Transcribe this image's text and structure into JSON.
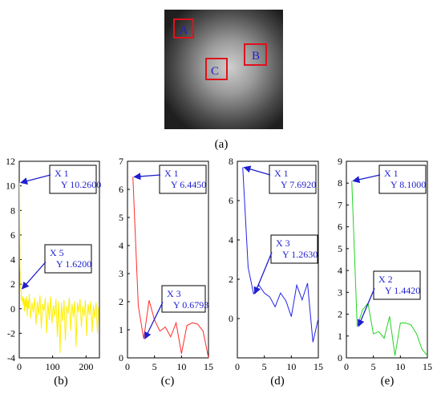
{
  "image_panel": {
    "label": "(a)",
    "regions": [
      {
        "label": "A",
        "color": "#e0121b",
        "text_color": "#1f1fd0"
      },
      {
        "label": "B",
        "color": "#e0121b",
        "text_color": "#1f1fd0"
      },
      {
        "label": "C",
        "color": "#e0121b",
        "text_color": "#1f1fd0"
      }
    ]
  },
  "chart_data": [
    {
      "type": "line",
      "label": "(b)",
      "color": "#ffee00",
      "xlim": [
        0,
        240
      ],
      "ylim": [
        -4,
        12
      ],
      "xticks": [
        0,
        100,
        200
      ],
      "yticks": [
        -4,
        -2,
        0,
        2,
        4,
        6,
        8,
        10,
        12
      ],
      "x": [
        1,
        2,
        3,
        4,
        5,
        6,
        8,
        10,
        12,
        14,
        16,
        18,
        20,
        22,
        24,
        26,
        28,
        30,
        34,
        38,
        42,
        46,
        50,
        54,
        58,
        62,
        66,
        70,
        74,
        78,
        82,
        86,
        90,
        94,
        98,
        102,
        106,
        110,
        114,
        118,
        122,
        126,
        130,
        134,
        138,
        142,
        146,
        150,
        154,
        158,
        162,
        166,
        170,
        174,
        178,
        182,
        186,
        190,
        194,
        198,
        202,
        206,
        210,
        214,
        218,
        222,
        226,
        230,
        234,
        237
      ],
      "values": [
        10.26,
        3.5,
        1.8,
        1.7,
        1.62,
        1.1,
        0.6,
        1.0,
        0.3,
        0.9,
        -0.2,
        0.8,
        0.1,
        1.0,
        -0.6,
        0.7,
        0.0,
        1.2,
        -0.8,
        0.5,
        -0.3,
        0.9,
        -1.3,
        0.6,
        -0.5,
        1.1,
        -1.6,
        0.4,
        -0.2,
        0.9,
        -2.0,
        0.5,
        -0.9,
        1.0,
        -1.2,
        0.3,
        -0.6,
        0.8,
        -2.3,
        0.6,
        -3.6,
        0.5,
        -1.0,
        0.7,
        -2.6,
        0.2,
        -0.4,
        0.9,
        -1.8,
        0.4,
        -0.7,
        0.6,
        -3.1,
        0.5,
        -0.3,
        0.8,
        -1.5,
        0.2,
        -0.6,
        0.7,
        -2.2,
        0.4,
        -0.5,
        0.6,
        -1.9,
        0.3,
        -0.8,
        0.5,
        -2.0,
        0.1
      ],
      "annotations": [
        {
          "x_text": "X 1",
          "y_text": "Y 10.2600",
          "x": 1,
          "y": 10.26
        },
        {
          "x_text": "X 5",
          "y_text": "Y 1.6200",
          "x": 5,
          "y": 1.62
        }
      ]
    },
    {
      "type": "line",
      "label": "(c)",
      "color": "#ff2a2a",
      "xlim": [
        0,
        15
      ],
      "ylim": [
        0,
        7
      ],
      "xticks": [
        0,
        5,
        10,
        15
      ],
      "yticks": [
        0,
        1,
        2,
        3,
        4,
        5,
        6,
        7
      ],
      "x": [
        1,
        2,
        3,
        4,
        5,
        6,
        7,
        8,
        9,
        10,
        11,
        12,
        13,
        14,
        15
      ],
      "values": [
        6.445,
        1.85,
        0.68,
        2.05,
        1.35,
        0.95,
        1.1,
        0.75,
        1.25,
        0.15,
        1.15,
        1.25,
        1.2,
        0.95,
        0.0
      ],
      "annotations": [
        {
          "x_text": "X 1",
          "y_text": "Y 6.4450",
          "x": 1,
          "y": 6.445
        },
        {
          "x_text": "X 3",
          "y_text": "Y 0.6793",
          "x": 3,
          "y": 0.6793
        }
      ]
    },
    {
      "type": "line",
      "label": "(d)",
      "color": "#2323e8",
      "xlim": [
        0,
        15
      ],
      "ylim": [
        -2,
        8
      ],
      "xticks": [
        0,
        5,
        10,
        15
      ],
      "yticks": [
        0,
        2,
        4,
        6,
        8
      ],
      "x": [
        1,
        2,
        3,
        4,
        5,
        6,
        7,
        8,
        9,
        10,
        11,
        12,
        13,
        14,
        15
      ],
      "values": [
        7.692,
        2.6,
        1.263,
        1.7,
        1.3,
        1.1,
        0.6,
        1.3,
        0.9,
        0.1,
        1.7,
        0.95,
        1.8,
        -1.2,
        0.0
      ],
      "annotations": [
        {
          "x_text": "X 1",
          "y_text": "Y 7.6920",
          "x": 1,
          "y": 7.692
        },
        {
          "x_text": "X 3",
          "y_text": "Y 1.2630",
          "x": 3,
          "y": 1.263
        }
      ]
    },
    {
      "type": "line",
      "label": "(e)",
      "color": "#22d422",
      "xlim": [
        0,
        15
      ],
      "ylim": [
        0,
        9
      ],
      "xticks": [
        0,
        5,
        10,
        15
      ],
      "yticks": [
        0,
        1,
        2,
        3,
        4,
        5,
        6,
        7,
        8,
        9
      ],
      "x": [
        1,
        2,
        3,
        4,
        5,
        6,
        7,
        8,
        9,
        10,
        11,
        12,
        13,
        14,
        15
      ],
      "values": [
        8.1,
        1.442,
        2.2,
        2.5,
        1.1,
        1.2,
        0.9,
        1.9,
        0.1,
        1.6,
        1.6,
        1.5,
        1.1,
        0.4,
        0.1
      ],
      "annotations": [
        {
          "x_text": "X 1",
          "y_text": "Y 8.1000",
          "x": 1,
          "y": 8.1
        },
        {
          "x_text": "X 2",
          "y_text": "Y 1.4420",
          "x": 2,
          "y": 1.442
        }
      ]
    }
  ]
}
